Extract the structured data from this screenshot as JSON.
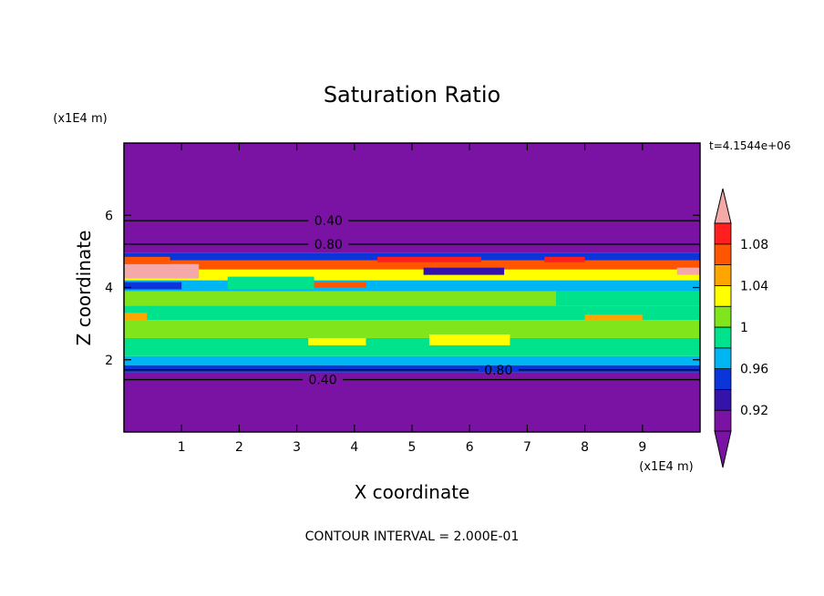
{
  "chart_data": {
    "type": "heatmap",
    "title": "Saturation Ratio",
    "xlabel": "X coordinate",
    "ylabel": "Z coordinate",
    "x_unit": "(x1E4 m)",
    "y_unit": "(x1E4 m)",
    "xlim": [
      0,
      10
    ],
    "ylim": [
      0,
      8
    ],
    "x_ticks": [
      "1",
      "2",
      "3",
      "4",
      "5",
      "6",
      "7",
      "8",
      "9"
    ],
    "y_ticks": [
      "2",
      "4",
      "6"
    ],
    "x_tick_values": [
      1,
      2,
      3,
      4,
      5,
      6,
      7,
      8,
      9
    ],
    "y_tick_values": [
      2,
      4,
      6
    ],
    "time_label": "t=4.1544e+06",
    "footer": "CONTOUR INTERVAL = 2.000E-01",
    "colorbar": {
      "levels": [
        0.9,
        0.92,
        0.94,
        0.96,
        0.98,
        1.0,
        1.02,
        1.04,
        1.06,
        1.08,
        1.1
      ],
      "tick_labels": [
        "0.92",
        "0.96",
        "1",
        "1.04",
        "1.08"
      ],
      "tick_values": [
        0.92,
        0.96,
        1.0,
        1.04,
        1.08
      ],
      "colors": [
        "#7a12a4",
        "#3413a8",
        "#0a35d8",
        "#00b6f2",
        "#00e28c",
        "#80e51a",
        "#ffff00",
        "#ffa500",
        "#ff5500",
        "#ff1f1f"
      ],
      "under_color": "#7a12a4",
      "over_color": "#f5a8a8"
    },
    "contour_lines": [
      {
        "label": "0.40",
        "z": 1.45,
        "label_x": 3.45
      },
      {
        "label": "0.80",
        "z": 1.72,
        "label_x": 6.5
      },
      {
        "label": "0.80",
        "z": 5.2,
        "label_x": 3.55
      },
      {
        "label": "0.40",
        "z": 5.85,
        "label_x": 3.55
      }
    ],
    "bands": [
      {
        "z0": 0.0,
        "z1": 1.65,
        "value": 0.9
      },
      {
        "z0": 1.65,
        "z1": 1.85,
        "value": 0.94
      },
      {
        "z0": 1.85,
        "z1": 2.1,
        "value": 0.96
      },
      {
        "z0": 2.1,
        "z1": 2.6,
        "value": 0.98
      },
      {
        "z0": 2.6,
        "z1": 3.1,
        "value": 1.0
      },
      {
        "z0": 3.1,
        "z1": 3.5,
        "value": 0.98
      },
      {
        "z0": 3.5,
        "z1": 3.9,
        "value": 1.0
      },
      {
        "z0": 3.9,
        "z1": 4.2,
        "value": 0.96
      },
      {
        "z0": 4.2,
        "z1": 4.5,
        "value": 1.02
      },
      {
        "z0": 4.5,
        "z1": 4.75,
        "value": 1.06
      },
      {
        "z0": 4.75,
        "z1": 4.95,
        "value": 0.94
      },
      {
        "z0": 4.95,
        "z1": 8.0,
        "value": 0.9
      }
    ],
    "patches": [
      {
        "x0": 0.0,
        "x1": 1.3,
        "z0": 4.25,
        "z1": 4.65,
        "value": 1.1
      },
      {
        "x0": 0.0,
        "x1": 0.8,
        "z0": 4.65,
        "z1": 4.85,
        "value": 1.06
      },
      {
        "x0": 4.4,
        "x1": 6.2,
        "z0": 4.7,
        "z1": 4.85,
        "value": 1.08
      },
      {
        "x0": 7.3,
        "x1": 8.0,
        "z0": 4.7,
        "z1": 4.85,
        "value": 1.08
      },
      {
        "x0": 9.6,
        "x1": 10.0,
        "z0": 4.35,
        "z1": 4.55,
        "value": 1.1
      },
      {
        "x0": 5.2,
        "x1": 6.6,
        "z0": 4.35,
        "z1": 4.55,
        "value": 0.92
      },
      {
        "x0": 3.0,
        "x1": 4.2,
        "z0": 4.0,
        "z1": 4.15,
        "value": 1.06
      },
      {
        "x0": 0.0,
        "x1": 1.0,
        "z0": 3.95,
        "z1": 4.15,
        "value": 0.94
      },
      {
        "x0": 1.8,
        "x1": 3.3,
        "z0": 3.95,
        "z1": 4.3,
        "value": 0.98
      },
      {
        "x0": 7.5,
        "x1": 10.0,
        "z0": 3.5,
        "z1": 3.9,
        "value": 0.98
      },
      {
        "x0": 5.3,
        "x1": 6.7,
        "z0": 2.4,
        "z1": 2.7,
        "value": 1.02
      },
      {
        "x0": 3.2,
        "x1": 4.2,
        "z0": 2.4,
        "z1": 2.6,
        "value": 1.02
      },
      {
        "x0": 0.0,
        "x1": 0.4,
        "z0": 3.1,
        "z1": 3.3,
        "value": 1.04
      },
      {
        "x0": 8.0,
        "x1": 9.0,
        "z0": 3.1,
        "z1": 3.25,
        "value": 1.04
      }
    ]
  }
}
